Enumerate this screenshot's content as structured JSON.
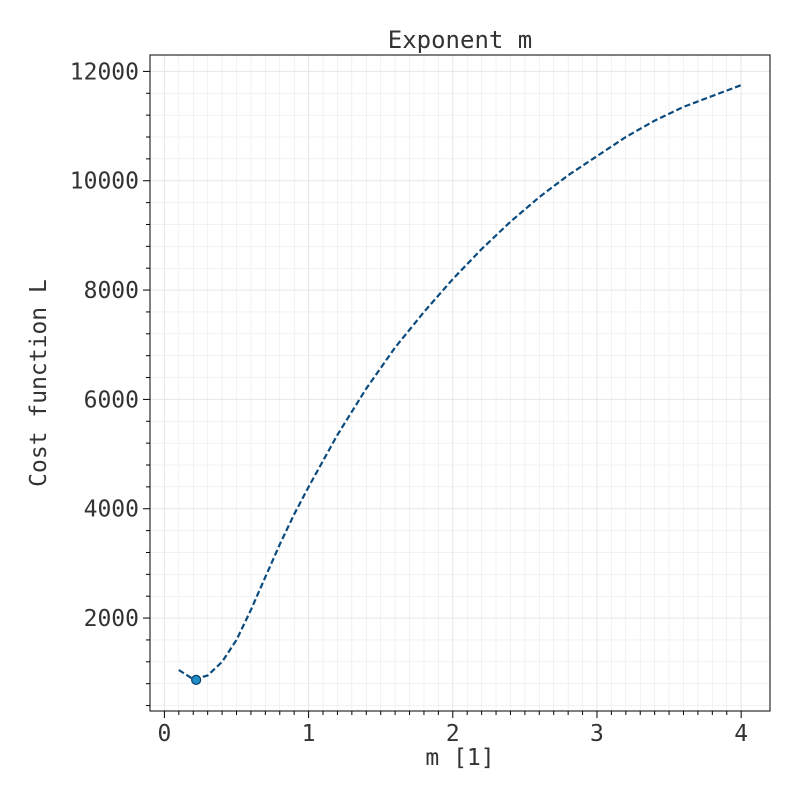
{
  "chart_data": {
    "type": "line",
    "title": "Exponent m",
    "xlabel": "m [1]",
    "ylabel": "Cost function L",
    "xlim": [
      -0.1,
      4.2
    ],
    "ylim": [
      300,
      12300
    ],
    "xticks": [
      0,
      1,
      2,
      3,
      4
    ],
    "xtick_labels": [
      "0",
      "1",
      "2",
      "3",
      "4"
    ],
    "yticks": [
      2000,
      4000,
      6000,
      8000,
      10000,
      12000
    ],
    "ytick_labels": [
      "2000",
      "4000",
      "6000",
      "8000",
      "10000",
      "12000"
    ],
    "grid": true,
    "series": [
      {
        "style": "dashed",
        "color": "#0b4a7d",
        "x": [
          0.1,
          0.2,
          0.3,
          0.4,
          0.5,
          0.6,
          0.7,
          0.8,
          0.9,
          1.0,
          1.2,
          1.4,
          1.6,
          1.8,
          2.0,
          2.2,
          2.4,
          2.6,
          2.8,
          3.0,
          3.2,
          3.4,
          3.6,
          3.8,
          4.0
        ],
        "y": [
          1050,
          880,
          950,
          1200,
          1600,
          2150,
          2750,
          3350,
          3900,
          4400,
          5350,
          6200,
          6950,
          7600,
          8200,
          8750,
          9250,
          9700,
          10100,
          10450,
          10800,
          11100,
          11350,
          11550,
          11750
        ]
      }
    ],
    "marker": {
      "x": 0.22,
      "y": 870,
      "color": "#1e8fc8",
      "edge_color": "#0b3d66"
    }
  },
  "colors": {
    "line": "#0b4a7d",
    "grid": "#e6e6e6",
    "axis": "#000000",
    "text": "#333333"
  }
}
